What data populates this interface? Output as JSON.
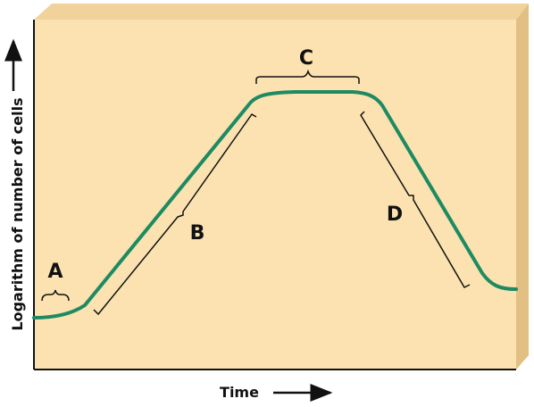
{
  "diagram": {
    "x_axis_label": "Time",
    "y_axis_label": "Logarithm of number of cells",
    "phases": [
      {
        "id": "A"
      },
      {
        "id": "B"
      },
      {
        "id": "C"
      },
      {
        "id": "D"
      }
    ],
    "colors": {
      "panel_face": "#fbe2b0",
      "panel_top": "#f1d29a",
      "panel_side": "#e2bf83",
      "curve": "#1e8a62",
      "axis": "#111111"
    },
    "icons": [
      "x-axis-arrow-icon",
      "y-axis-arrow-icon"
    ]
  }
}
